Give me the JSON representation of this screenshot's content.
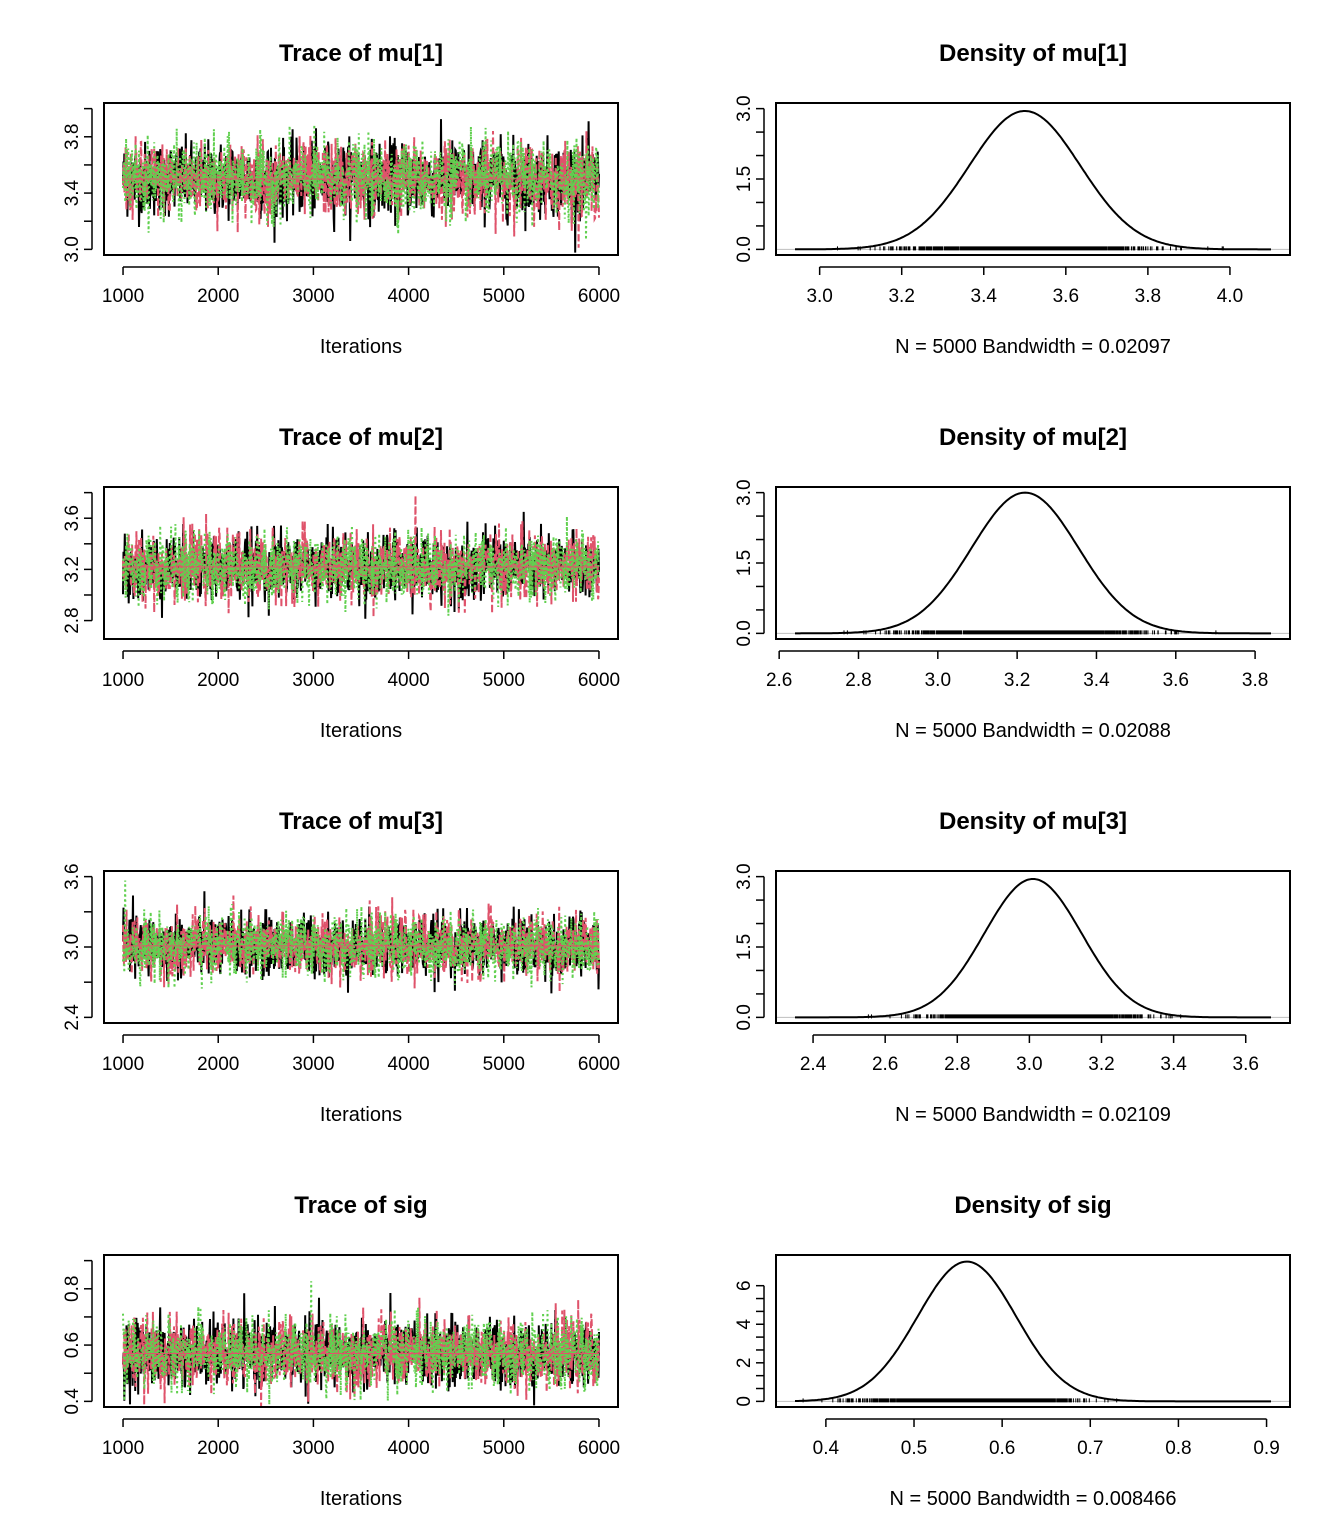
{
  "colors": {
    "chain1": "#000000",
    "chain2": "#DF536B",
    "chain3": "#61D04F",
    "baseline": "#BEBEBE"
  },
  "chart_data": [
    {
      "type": "line",
      "plot": "trace",
      "title": "Trace of mu[1]",
      "xlabel": "Iterations",
      "xlim": [
        1000,
        6000
      ],
      "ylim": [
        3.0,
        4.0
      ],
      "xticks": [
        1000,
        2000,
        3000,
        4000,
        5000,
        6000
      ],
      "yticks": [
        3.0,
        3.4,
        3.8
      ],
      "series": [
        {
          "mean": 3.5,
          "sd": 0.13
        },
        {
          "mean": 3.5,
          "sd": 0.13
        },
        {
          "mean": 3.5,
          "sd": 0.13
        }
      ],
      "xlabels": [
        "1000",
        "2000",
        "3000",
        "4000",
        "5000",
        "6000"
      ],
      "ylabels": [
        "3.0",
        "3.4",
        "3.8"
      ]
    },
    {
      "type": "line",
      "plot": "density",
      "title": "Density of mu[1]",
      "xlabel": "N = 5000   Bandwidth = 0.02097",
      "xlim": [
        2.94,
        4.1
      ],
      "ylim": [
        0,
        3.0
      ],
      "xticks": [
        3.0,
        3.2,
        3.4,
        3.6,
        3.8,
        4.0
      ],
      "yticks": [
        0.0,
        1.5,
        3.0
      ],
      "peak_x": 3.5,
      "peak_y": 2.95,
      "sd": 0.135,
      "xlabels": [
        "3.0",
        "3.2",
        "3.4",
        "3.6",
        "3.8",
        "4.0"
      ],
      "ylabels": [
        "0.0",
        "1.5",
        "3.0"
      ]
    },
    {
      "type": "line",
      "plot": "trace",
      "title": "Trace of mu[2]",
      "xlabel": "Iterations",
      "xlim": [
        1000,
        6000
      ],
      "ylim": [
        2.7,
        3.8
      ],
      "xticks": [
        1000,
        2000,
        3000,
        4000,
        5000,
        6000
      ],
      "yticks": [
        2.8,
        3.2,
        3.6
      ],
      "series": [
        {
          "mean": 3.22,
          "sd": 0.13
        },
        {
          "mean": 3.22,
          "sd": 0.13
        },
        {
          "mean": 3.22,
          "sd": 0.13
        }
      ],
      "xlabels": [
        "1000",
        "2000",
        "3000",
        "4000",
        "5000",
        "6000"
      ],
      "ylabels": [
        "2.8",
        "3.2",
        "3.6"
      ]
    },
    {
      "type": "line",
      "plot": "density",
      "title": "Density of mu[2]",
      "xlabel": "N = 5000   Bandwidth = 0.02088",
      "xlim": [
        2.64,
        3.84
      ],
      "ylim": [
        0,
        3.0
      ],
      "xticks": [
        2.6,
        2.8,
        3.0,
        3.2,
        3.4,
        3.6,
        3.8
      ],
      "yticks": [
        0.0,
        1.5,
        3.0
      ],
      "peak_x": 3.22,
      "peak_y": 3.0,
      "sd": 0.135,
      "xlabels": [
        "2.6",
        "2.8",
        "3.0",
        "3.2",
        "3.4",
        "3.6",
        "3.8"
      ],
      "ylabels": [
        "0.0",
        "1.5",
        "3.0"
      ]
    },
    {
      "type": "line",
      "plot": "trace",
      "title": "Trace of mu[3]",
      "xlabel": "Iterations",
      "xlim": [
        1000,
        6000
      ],
      "ylim": [
        2.4,
        3.6
      ],
      "xticks": [
        1000,
        2000,
        3000,
        4000,
        5000,
        6000
      ],
      "yticks": [
        2.4,
        3.0,
        3.6
      ],
      "series": [
        {
          "mean": 3.01,
          "sd": 0.13
        },
        {
          "mean": 3.01,
          "sd": 0.13
        },
        {
          "mean": 3.01,
          "sd": 0.13
        }
      ],
      "xlabels": [
        "1000",
        "2000",
        "3000",
        "4000",
        "5000",
        "6000"
      ],
      "ylabels": [
        "2.4",
        "3.0",
        "3.6"
      ]
    },
    {
      "type": "line",
      "plot": "density",
      "title": "Density of mu[3]",
      "xlabel": "N = 5000   Bandwidth = 0.02109",
      "xlim": [
        2.35,
        3.67
      ],
      "ylim": [
        0,
        3.0
      ],
      "xticks": [
        2.4,
        2.6,
        2.8,
        3.0,
        3.2,
        3.4,
        3.6
      ],
      "yticks": [
        0.0,
        1.5,
        3.0
      ],
      "peak_x": 3.01,
      "peak_y": 2.95,
      "sd": 0.135,
      "xlabels": [
        "2.4",
        "2.6",
        "2.8",
        "3.0",
        "3.2",
        "3.4",
        "3.6"
      ],
      "ylabels": [
        "0.0",
        "1.5",
        "3.0"
      ]
    },
    {
      "type": "line",
      "plot": "trace",
      "title": "Trace of sig",
      "xlabel": "Iterations",
      "xlim": [
        1000,
        6000
      ],
      "ylim": [
        0.4,
        0.9
      ],
      "xticks": [
        1000,
        2000,
        3000,
        4000,
        5000,
        6000
      ],
      "yticks": [
        0.4,
        0.6,
        0.8
      ],
      "series": [
        {
          "mean": 0.57,
          "sd": 0.06
        },
        {
          "mean": 0.57,
          "sd": 0.06
        },
        {
          "mean": 0.57,
          "sd": 0.06
        }
      ],
      "xlabels": [
        "1000",
        "2000",
        "3000",
        "4000",
        "5000",
        "6000"
      ],
      "ylabels": [
        "0.4",
        "0.6",
        "0.8"
      ]
    },
    {
      "type": "line",
      "plot": "density",
      "title": "Density of sig",
      "xlabel": "N = 5000   Bandwidth = 0.008466",
      "xlim": [
        0.365,
        0.905
      ],
      "ylim": [
        0,
        7.3
      ],
      "xticks": [
        0.4,
        0.5,
        0.6,
        0.7,
        0.8,
        0.9
      ],
      "yticks": [
        0,
        2,
        4,
        6
      ],
      "peak_x": 0.56,
      "peak_y": 7.25,
      "sd": 0.056,
      "xlabels": [
        "0.4",
        "0.5",
        "0.6",
        "0.7",
        "0.8",
        "0.9"
      ],
      "ylabels": [
        "0",
        "2",
        "4",
        "6"
      ]
    }
  ]
}
